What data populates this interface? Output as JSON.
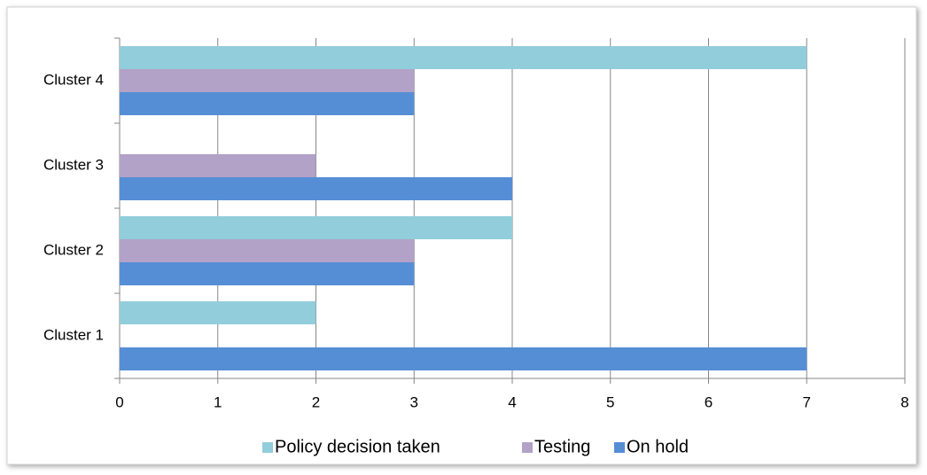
{
  "chart_data": {
    "type": "hbar",
    "categories": [
      "Cluster 1",
      "Cluster 2",
      "Cluster 3",
      "Cluster 4"
    ],
    "series": [
      {
        "name": "Policy decision taken",
        "color": "#92cddc",
        "values": [
          2,
          4,
          0,
          7
        ]
      },
      {
        "name": "Testing",
        "color": "#b2a2c7",
        "values": [
          0,
          3,
          2,
          3
        ]
      },
      {
        "name": "On hold",
        "color": "#558ed5",
        "values": [
          7,
          3,
          4,
          3
        ]
      }
    ],
    "xlim": [
      0,
      8
    ],
    "xticks": [
      0,
      1,
      2,
      3,
      4,
      5,
      6,
      7,
      8
    ],
    "grid": true,
    "legend": "bottom"
  }
}
